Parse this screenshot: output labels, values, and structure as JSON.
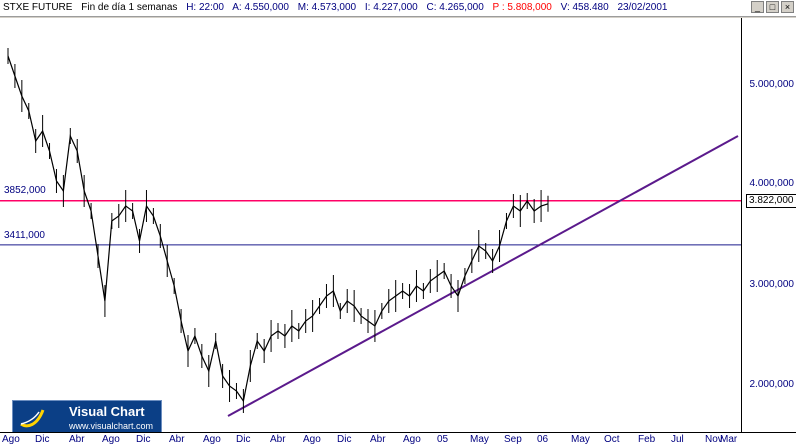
{
  "header": {
    "name": "STXE FUTURE",
    "period": "Fin de día 1 semanas",
    "h": "H: 22:00",
    "a": "A: 4.550,000",
    "m": "M: 4.573,000",
    "i": "I: 4.227,000",
    "c": "C: 4.265,000",
    "p": "P : 5.808,000",
    "v": "V: 458.480",
    "date": "23/02/2001"
  },
  "window_buttons": [
    "_",
    "□",
    "×"
  ],
  "logo": {
    "title": "Visual Chart",
    "url": "www.visualchart.com"
  },
  "colors": {
    "price": "#000000",
    "resistance": "#ff0066",
    "support": "#1a1a8c",
    "trend": "#5b1a8c"
  },
  "chart_data": {
    "type": "line",
    "title": "",
    "xlabel": "",
    "ylabel": "",
    "ylim": [
      1650,
      5500
    ],
    "y_ticks": [
      {
        "value": 2000,
        "label": "2.000,000"
      },
      {
        "value": 3000,
        "label": "3.000,000"
      },
      {
        "value": 4000,
        "label": "4.000,000"
      },
      {
        "value": 5000,
        "label": "5.000,000"
      }
    ],
    "last_value": {
      "value": 3822,
      "label": "3.822,000"
    },
    "x_labels": [
      "Ago",
      "Dic",
      "Abr",
      "Ago",
      "Dic",
      "Abr",
      "Ago",
      "Dic",
      "Abr",
      "Ago",
      "Dic",
      "Abr",
      "Ago",
      "05",
      "May",
      "Sep",
      "06",
      "May",
      "Oct",
      "Feb",
      "Jul",
      "Nov",
      "Mar"
    ],
    "horizontal_lines": [
      {
        "value": 3852,
        "label": "3852,000"
      },
      {
        "value": 3411,
        "label": "3411,000"
      }
    ],
    "trendline": {
      "start": [
        0,
        1700
      ],
      "end": [
        91,
        4500
      ]
    },
    "series": [
      {
        "values": [
          5300,
          5100,
          4900,
          4750,
          4450,
          4550,
          4350,
          4050,
          3950,
          4500,
          4350,
          3950,
          3750,
          3300,
          2850,
          3650,
          3700,
          3800,
          3750,
          3450,
          3800,
          3700,
          3500,
          3250,
          3000,
          2650,
          2350,
          2500,
          2300,
          2150,
          2450,
          2100,
          2000,
          1950,
          1850,
          2200,
          2450,
          2350,
          2500,
          2550,
          2500,
          2600,
          2550,
          2650,
          2700,
          2800,
          2900,
          2950,
          2750,
          2850,
          2800,
          2700,
          2650,
          2600,
          2750,
          2850,
          2900,
          2950,
          2900,
          3000,
          2950,
          3050,
          3100,
          3150,
          3000,
          2900,
          3100,
          3250,
          3400,
          3350,
          3250,
          3400,
          3650,
          3800,
          3750,
          3850,
          3750,
          3800,
          3822
        ]
      }
    ]
  }
}
